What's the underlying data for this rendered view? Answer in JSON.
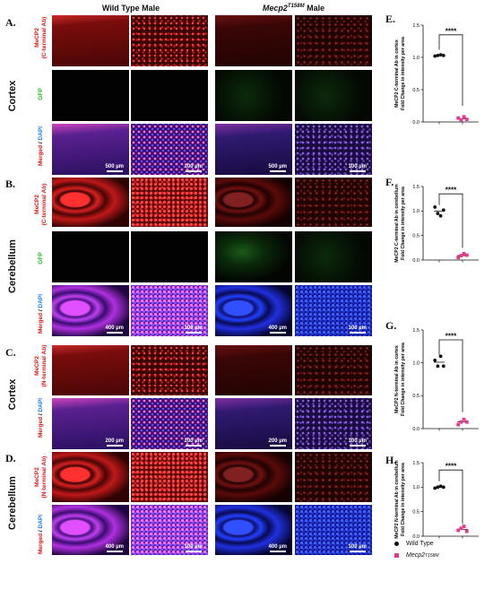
{
  "columns": {
    "wt": "Wild Type Male",
    "mut_main": "Mecp2",
    "mut_sup": "T158M",
    "mut_tail": " Male"
  },
  "panels": {
    "A": "A.",
    "B": "B.",
    "C": "C.",
    "D": "D.",
    "E": "E.",
    "F": "F.",
    "G": "G.",
    "H": "H."
  },
  "regions": {
    "A": "Cortex",
    "B": "Cerebellum",
    "C": "Cortex",
    "D": "Cerebellum"
  },
  "rows": {
    "mecp2_c": [
      "MeCP2",
      "(C-terminal Ab)"
    ],
    "gfp": "GFP",
    "merged": [
      "Merged",
      " / ",
      "DAPI"
    ],
    "mecp2_n": [
      "MeCP2",
      "(N-terminal Ab)"
    ]
  },
  "scales": {
    "s500": "500 µm",
    "s400": "400 µm",
    "s200": "200 µm",
    "s100": "100 µm"
  },
  "significance": "****",
  "legend": {
    "wt": "Wild Type",
    "mut_main": "Mecp2",
    "mut_sup": "T158M"
  },
  "colors": {
    "wt": "#111111",
    "mut": "#e8388a"
  },
  "chart_data": [
    {
      "panel": "E",
      "type": "scatter",
      "ylabel": [
        "MeCP2 C-terminal Ab in cortex",
        "Fold Change in intensity per area"
      ],
      "ylim": [
        0,
        1.5
      ],
      "yticks": [
        0.0,
        0.5,
        1.0,
        1.5
      ],
      "series": [
        {
          "name": "Wild Type",
          "values": [
            1.02,
            1.03,
            1.04,
            1.03
          ],
          "mean": 1.03
        },
        {
          "name": "Mecp2 T158M",
          "values": [
            0.06,
            0.03,
            0.08,
            0.04
          ],
          "mean": 0.05
        }
      ]
    },
    {
      "panel": "F",
      "type": "scatter",
      "ylabel": [
        "MeCP2 C-terminal Ab in cerebellum",
        "Fold Change in intensity per area"
      ],
      "ylim": [
        0,
        1.5
      ],
      "yticks": [
        0.0,
        0.5,
        1.0,
        1.5
      ],
      "series": [
        {
          "name": "Wild Type",
          "values": [
            1.08,
            0.95,
            0.9,
            1.02
          ],
          "mean": 1.0
        },
        {
          "name": "Mecp2 T158M",
          "values": [
            0.05,
            0.09,
            0.13,
            0.1
          ],
          "mean": 0.09
        }
      ]
    },
    {
      "panel": "G",
      "type": "scatter",
      "ylabel": [
        "MeCP2 N-terminal Ab in cortex",
        "Fold Change in intensity per area"
      ],
      "ylim": [
        0,
        1.5
      ],
      "yticks": [
        0.0,
        0.5,
        1.0,
        1.5
      ],
      "series": [
        {
          "name": "Wild Type",
          "values": [
            1.04,
            0.95,
            1.1,
            0.95
          ],
          "mean": 1.01
        },
        {
          "name": "Mecp2 T158M",
          "values": [
            0.06,
            0.1,
            0.14,
            0.1
          ],
          "mean": 0.1
        }
      ]
    },
    {
      "panel": "H",
      "type": "scatter",
      "ylabel": [
        "MeCP2 N-terminal Ab in cerebellum",
        "Fold Change in intensity per area"
      ],
      "ylim": [
        0,
        1.5
      ],
      "yticks": [
        0.0,
        0.5,
        1.0,
        1.5
      ],
      "series": [
        {
          "name": "Wild Type",
          "values": [
            0.98,
            1.0,
            1.02,
            1.0
          ],
          "mean": 1.0
        },
        {
          "name": "Mecp2 T158M",
          "values": [
            0.12,
            0.16,
            0.2,
            0.1
          ],
          "mean": 0.14
        }
      ]
    }
  ]
}
